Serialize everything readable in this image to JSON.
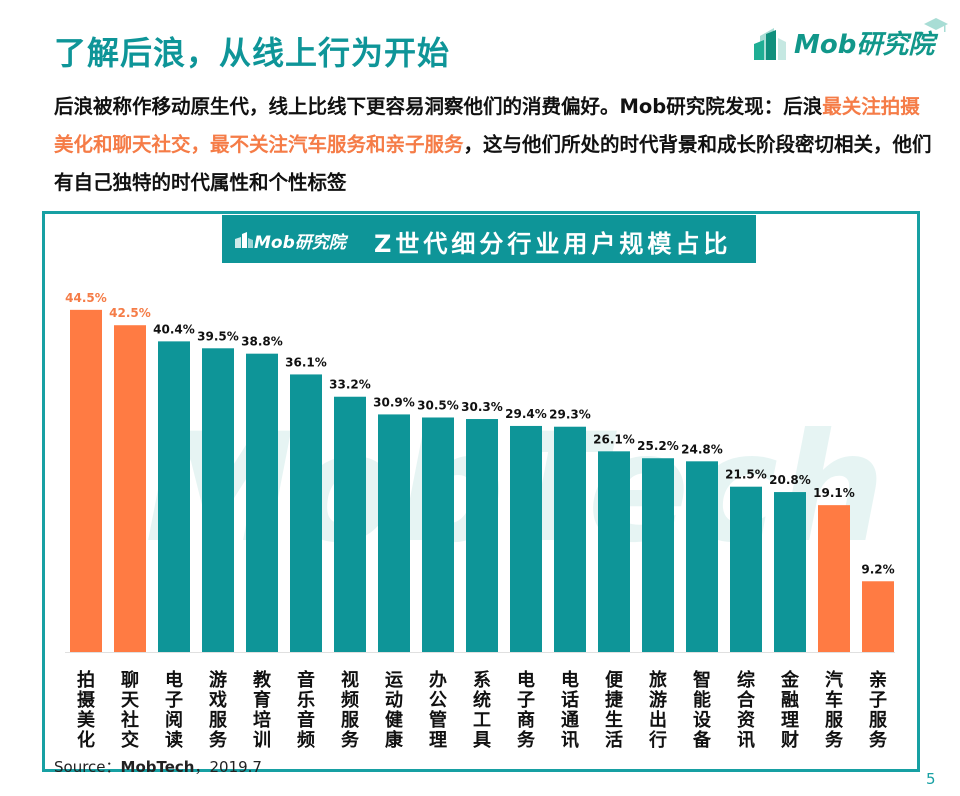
{
  "header": {
    "title": "了解后浪，从线上行为开始",
    "logo_text": "Mob研究院"
  },
  "intro": {
    "part1": "后浪被称作移动原生代，线上比线下更容易洞察他们的消费偏好。Mob研究院发现：后浪",
    "highlight1": "最关注拍摄美化和聊天社交",
    "sep": "，",
    "highlight2": "最不关注汽车服务和亲子服务",
    "part2": "，这与他们所处的时代背景和成长阶段密切相关，他们有自己独特的时代属性和个性标签"
  },
  "chart_header": {
    "logo_text": "Mob研究院",
    "title": "Z世代细分行业用户规模占比"
  },
  "watermark": "MobTech",
  "colors": {
    "teal": "#0e9598",
    "orange": "#ff7b43",
    "label_dark": "#111111",
    "label_orange": "#f57c47"
  },
  "chart_data": {
    "type": "bar",
    "title": "Z世代细分行业用户规模占比",
    "xlabel": "",
    "ylabel": "",
    "unit": "%",
    "ylim": [
      0,
      45
    ],
    "grid": false,
    "categories": [
      "拍摄美化",
      "聊天社交",
      "电子阅读",
      "游戏服务",
      "教育培训",
      "音乐音频",
      "视频服务",
      "运动健康",
      "办公管理",
      "系统工具",
      "电子商务",
      "电话通讯",
      "便捷生活",
      "旅游出行",
      "智能设备",
      "综合资讯",
      "金融理财",
      "汽车服务",
      "亲子服务"
    ],
    "values": [
      44.5,
      42.5,
      40.4,
      39.5,
      38.8,
      36.1,
      33.2,
      30.9,
      30.5,
      30.3,
      29.4,
      29.3,
      26.1,
      25.2,
      24.8,
      21.5,
      20.8,
      19.1,
      9.2
    ],
    "labels": [
      "44.5%",
      "42.5%",
      "40.4%",
      "39.5%",
      "38.8%",
      "36.1%",
      "33.2%",
      "30.9%",
      "30.5%",
      "30.3%",
      "29.4%",
      "29.3%",
      "26.1%",
      "25.2%",
      "24.8%",
      "21.5%",
      "20.8%",
      "19.1%",
      "9.2%"
    ],
    "highlight": [
      "top",
      "top",
      "",
      "",
      "",
      "",
      "",
      "",
      "",
      "",
      "",
      "",
      "",
      "",
      "",
      "",
      "",
      "bottom",
      "bottom"
    ]
  },
  "footer": {
    "source_prefix": "Source：",
    "source_name": "MobTech",
    "source_suffix": "，2019.7",
    "page_number": "5"
  }
}
